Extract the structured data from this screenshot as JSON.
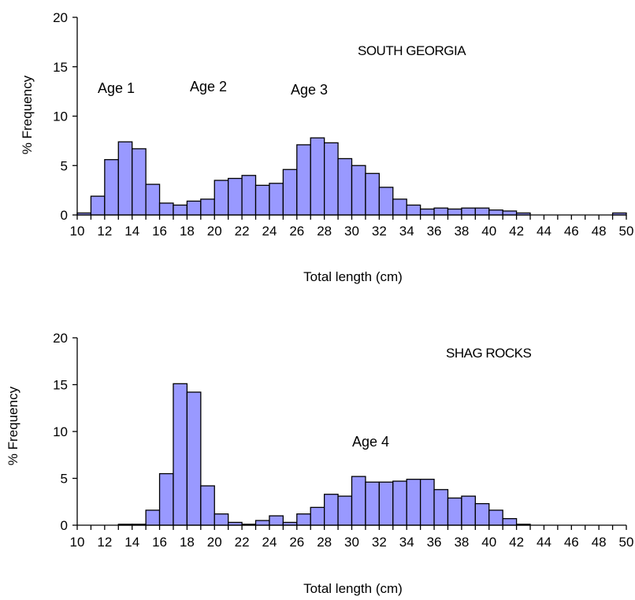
{
  "chart_data": [
    {
      "type": "bar",
      "annotations": [
        "SOUTH GEORGIA",
        "Age 1",
        "Age 2",
        "Age 3"
      ],
      "xlabel": "Total length (cm)",
      "ylabel": "% Frequency",
      "ylim": [
        0,
        20
      ],
      "yticks": [
        0,
        5,
        10,
        15,
        20
      ],
      "xlim": [
        10,
        50
      ],
      "xticks": [
        10,
        12,
        14,
        16,
        18,
        20,
        22,
        24,
        26,
        28,
        30,
        32,
        34,
        36,
        38,
        40,
        42,
        44,
        46,
        48,
        50
      ],
      "grid": false,
      "bar_width_cm": 1,
      "bin_starts": [
        10,
        11,
        12,
        13,
        14,
        15,
        16,
        17,
        18,
        19,
        20,
        21,
        22,
        23,
        24,
        25,
        26,
        27,
        28,
        29,
        30,
        31,
        32,
        33,
        34,
        35,
        36,
        37,
        38,
        39,
        40,
        41,
        42,
        43,
        44,
        45,
        46,
        47,
        48,
        49
      ],
      "values": [
        0.2,
        1.9,
        5.6,
        7.4,
        6.7,
        3.1,
        1.2,
        1.0,
        1.4,
        1.6,
        3.5,
        3.7,
        4.0,
        3.0,
        3.2,
        4.6,
        7.1,
        7.8,
        7.3,
        5.7,
        5.0,
        4.2,
        2.8,
        1.6,
        1.0,
        0.6,
        0.7,
        0.6,
        0.7,
        0.7,
        0.5,
        0.4,
        0.2,
        0,
        0,
        0,
        0,
        0,
        0,
        0.2
      ],
      "colors": {
        "bar_fill": "#9999ff",
        "bar_stroke": "#000000",
        "axis": "#000000"
      }
    },
    {
      "type": "bar",
      "annotations": [
        "SHAG ROCKS",
        "Age 4"
      ],
      "xlabel": "Total length (cm)",
      "ylabel": "% Frequency",
      "ylim": [
        0,
        20
      ],
      "yticks": [
        0,
        5,
        10,
        15,
        20
      ],
      "xlim": [
        10,
        50
      ],
      "xticks": [
        10,
        12,
        14,
        16,
        18,
        20,
        22,
        24,
        26,
        28,
        30,
        32,
        34,
        36,
        38,
        40,
        42,
        44,
        46,
        48,
        50
      ],
      "grid": false,
      "bar_width_cm": 1,
      "bin_starts": [
        10,
        11,
        12,
        13,
        14,
        15,
        16,
        17,
        18,
        19,
        20,
        21,
        22,
        23,
        24,
        25,
        26,
        27,
        28,
        29,
        30,
        31,
        32,
        33,
        34,
        35,
        36,
        37,
        38,
        39,
        40,
        41,
        42,
        43,
        44,
        45,
        46,
        47,
        48,
        49
      ],
      "values": [
        0,
        0,
        0,
        0.1,
        0.1,
        1.6,
        5.5,
        15.1,
        14.2,
        4.2,
        1.2,
        0.3,
        0.1,
        0.5,
        1.0,
        0.3,
        1.2,
        1.9,
        3.3,
        3.1,
        5.2,
        4.6,
        4.6,
        4.7,
        4.9,
        4.9,
        3.8,
        2.9,
        3.1,
        2.3,
        1.6,
        0.7,
        0.1,
        0,
        0,
        0,
        0,
        0,
        0,
        0
      ],
      "colors": {
        "bar_fill": "#9999ff",
        "bar_stroke": "#000000",
        "axis": "#000000"
      }
    }
  ]
}
